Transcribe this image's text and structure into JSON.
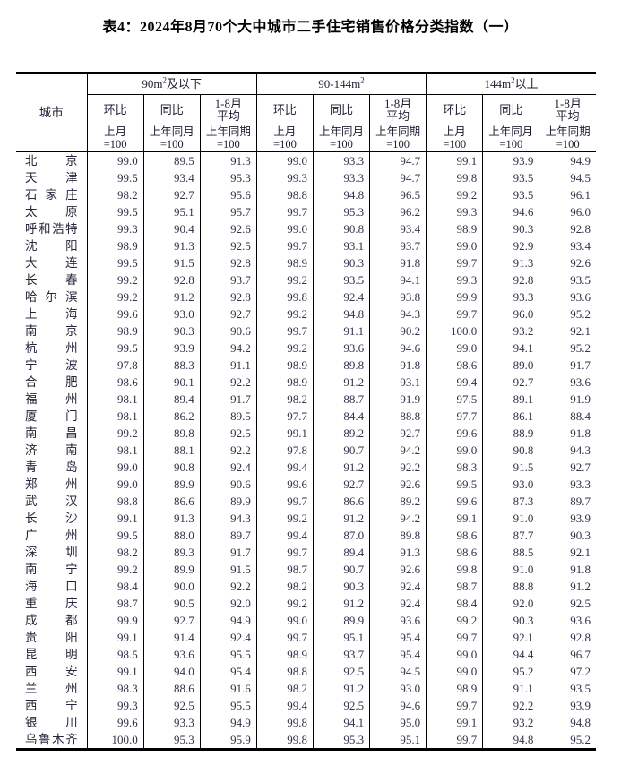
{
  "title": "表4：2024年8月70个大中城市二手住宅销售价格分类指数（一）",
  "table": {
    "city_header": "城市",
    "groups": [
      {
        "prefix": "90m",
        "sup": "2",
        "suffix": "及以下"
      },
      {
        "prefix": "90-144m",
        "sup": "2",
        "suffix": ""
      },
      {
        "prefix": "144m",
        "sup": "2",
        "suffix": "以上"
      }
    ],
    "metric_headers": [
      "环比",
      "同比",
      "1-8月\n平均"
    ],
    "base_headers": [
      "上月\n=100",
      "上年同月\n=100",
      "上年同期\n=100"
    ],
    "rows": [
      {
        "city": "北京",
        "values": [
          "99.0",
          "89.5",
          "91.3",
          "99.0",
          "93.3",
          "94.7",
          "99.1",
          "93.9",
          "94.9"
        ]
      },
      {
        "city": "天津",
        "values": [
          "99.5",
          "93.4",
          "95.3",
          "99.3",
          "93.3",
          "94.7",
          "99.8",
          "93.5",
          "94.5"
        ]
      },
      {
        "city": "石家庄",
        "values": [
          "98.2",
          "92.7",
          "95.6",
          "98.8",
          "94.8",
          "96.5",
          "99.2",
          "93.5",
          "96.1"
        ]
      },
      {
        "city": "太原",
        "values": [
          "99.5",
          "95.1",
          "95.7",
          "99.7",
          "95.3",
          "96.2",
          "99.3",
          "94.6",
          "96.0"
        ]
      },
      {
        "city": "呼和浩特",
        "values": [
          "99.3",
          "90.4",
          "92.6",
          "99.0",
          "90.8",
          "93.4",
          "98.9",
          "90.3",
          "92.8"
        ]
      },
      {
        "city": "沈阳",
        "values": [
          "98.9",
          "91.3",
          "92.5",
          "99.7",
          "93.1",
          "93.7",
          "99.0",
          "92.9",
          "93.4"
        ]
      },
      {
        "city": "大连",
        "values": [
          "99.5",
          "91.5",
          "92.8",
          "98.9",
          "90.3",
          "91.8",
          "99.7",
          "91.3",
          "92.6"
        ]
      },
      {
        "city": "长春",
        "values": [
          "99.2",
          "92.8",
          "93.7",
          "99.2",
          "93.5",
          "94.1",
          "99.3",
          "92.8",
          "93.5"
        ]
      },
      {
        "city": "哈尔滨",
        "values": [
          "99.2",
          "91.2",
          "92.8",
          "99.8",
          "92.4",
          "93.8",
          "99.9",
          "93.3",
          "93.6"
        ]
      },
      {
        "city": "上海",
        "values": [
          "99.6",
          "93.0",
          "92.7",
          "99.2",
          "94.8",
          "94.3",
          "99.7",
          "96.0",
          "95.2"
        ]
      },
      {
        "city": "南京",
        "values": [
          "98.9",
          "90.3",
          "90.6",
          "99.7",
          "91.1",
          "90.2",
          "100.0",
          "93.2",
          "92.1"
        ]
      },
      {
        "city": "杭州",
        "values": [
          "99.5",
          "93.9",
          "94.2",
          "99.2",
          "93.6",
          "94.6",
          "99.0",
          "94.1",
          "95.2"
        ]
      },
      {
        "city": "宁波",
        "values": [
          "97.8",
          "88.3",
          "91.1",
          "98.9",
          "89.8",
          "91.8",
          "98.6",
          "89.0",
          "91.7"
        ]
      },
      {
        "city": "合肥",
        "values": [
          "98.6",
          "90.1",
          "92.2",
          "98.9",
          "91.2",
          "93.1",
          "99.4",
          "92.7",
          "93.6"
        ]
      },
      {
        "city": "福州",
        "values": [
          "98.1",
          "89.4",
          "91.7",
          "98.2",
          "88.7",
          "91.9",
          "97.5",
          "89.1",
          "91.9"
        ]
      },
      {
        "city": "厦门",
        "values": [
          "98.1",
          "86.2",
          "89.5",
          "97.7",
          "84.4",
          "88.8",
          "97.7",
          "86.1",
          "88.4"
        ]
      },
      {
        "city": "南昌",
        "values": [
          "99.2",
          "89.8",
          "92.5",
          "99.1",
          "89.2",
          "92.7",
          "99.6",
          "88.9",
          "91.8"
        ]
      },
      {
        "city": "济南",
        "values": [
          "98.1",
          "88.1",
          "92.2",
          "97.8",
          "90.7",
          "94.2",
          "99.0",
          "90.8",
          "94.3"
        ]
      },
      {
        "city": "青岛",
        "values": [
          "99.0",
          "90.8",
          "92.4",
          "99.4",
          "91.2",
          "92.2",
          "98.3",
          "91.5",
          "92.7"
        ]
      },
      {
        "city": "郑州",
        "values": [
          "99.0",
          "89.9",
          "90.6",
          "99.6",
          "92.7",
          "92.6",
          "99.5",
          "93.0",
          "93.3"
        ]
      },
      {
        "city": "武汉",
        "values": [
          "98.8",
          "86.6",
          "89.9",
          "99.7",
          "86.6",
          "89.2",
          "99.6",
          "87.3",
          "89.7"
        ]
      },
      {
        "city": "长沙",
        "values": [
          "99.1",
          "91.3",
          "94.3",
          "99.2",
          "91.2",
          "94.2",
          "99.1",
          "91.0",
          "93.9"
        ]
      },
      {
        "city": "广州",
        "values": [
          "99.5",
          "88.0",
          "89.7",
          "99.4",
          "87.0",
          "89.8",
          "98.6",
          "87.7",
          "90.3"
        ]
      },
      {
        "city": "深圳",
        "values": [
          "98.2",
          "89.3",
          "91.7",
          "99.7",
          "89.4",
          "91.3",
          "98.6",
          "88.5",
          "92.1"
        ]
      },
      {
        "city": "南宁",
        "values": [
          "99.2",
          "89.9",
          "91.5",
          "98.7",
          "90.7",
          "92.6",
          "99.8",
          "91.0",
          "91.8"
        ]
      },
      {
        "city": "海口",
        "values": [
          "98.4",
          "90.0",
          "92.2",
          "98.2",
          "90.3",
          "92.4",
          "98.7",
          "88.8",
          "91.2"
        ]
      },
      {
        "city": "重庆",
        "values": [
          "98.7",
          "90.5",
          "92.0",
          "99.2",
          "91.2",
          "92.4",
          "98.4",
          "92.0",
          "92.5"
        ]
      },
      {
        "city": "成都",
        "values": [
          "99.9",
          "92.7",
          "94.9",
          "99.0",
          "89.9",
          "93.6",
          "99.2",
          "90.3",
          "93.6"
        ]
      },
      {
        "city": "贵阳",
        "values": [
          "99.1",
          "91.4",
          "92.4",
          "99.7",
          "95.1",
          "95.4",
          "99.7",
          "92.1",
          "92.8"
        ]
      },
      {
        "city": "昆明",
        "values": [
          "98.5",
          "93.6",
          "95.5",
          "98.9",
          "93.7",
          "95.4",
          "99.0",
          "94.4",
          "96.7"
        ]
      },
      {
        "city": "西安",
        "values": [
          "99.1",
          "94.0",
          "95.4",
          "98.8",
          "92.5",
          "94.5",
          "99.0",
          "95.2",
          "97.2"
        ]
      },
      {
        "city": "兰州",
        "values": [
          "98.3",
          "88.6",
          "91.6",
          "98.2",
          "91.2",
          "93.0",
          "98.9",
          "91.1",
          "93.5"
        ]
      },
      {
        "city": "西宁",
        "values": [
          "99.3",
          "92.5",
          "95.5",
          "99.4",
          "92.5",
          "94.6",
          "99.7",
          "92.2",
          "93.9"
        ]
      },
      {
        "city": "银川",
        "values": [
          "99.6",
          "93.3",
          "94.9",
          "99.8",
          "94.1",
          "95.0",
          "99.1",
          "93.2",
          "94.8"
        ]
      },
      {
        "city": "乌鲁木齐",
        "values": [
          "100.0",
          "95.3",
          "95.9",
          "99.8",
          "95.3",
          "95.1",
          "99.7",
          "94.8",
          "95.2"
        ]
      }
    ]
  }
}
